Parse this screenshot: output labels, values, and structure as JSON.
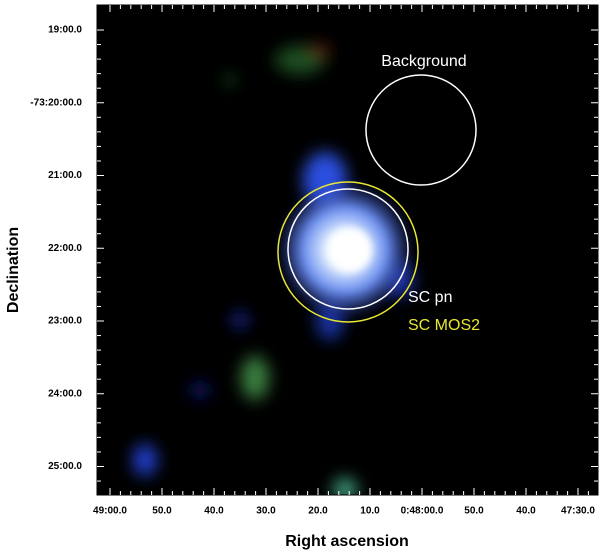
{
  "image": {
    "x_axis": {
      "label": "Right ascension",
      "tick_labels": [
        "49:00.0",
        "50.0",
        "40.0",
        "30.0",
        "20.0",
        "10.0",
        "0:48:00.0",
        "50.0",
        "40.0",
        "47:30.0"
      ]
    },
    "y_axis": {
      "label": "Declination",
      "tick_labels": [
        "19:00.0",
        "-73:20:00.0",
        "21:00.0",
        "22:00.0",
        "23:00.0",
        "24:00.0",
        "25:00.0"
      ]
    },
    "annotations": [
      "Background",
      "SC pn",
      "SC MOS2"
    ]
  }
}
